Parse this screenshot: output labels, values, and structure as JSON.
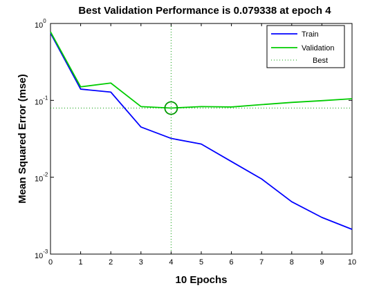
{
  "chart_data": {
    "type": "line",
    "title": "Best Validation Performance is 0.079338 at epoch 4",
    "xlabel": "10 Epochs",
    "ylabel": "Mean Squared Error  (mse)",
    "xlim": [
      0,
      10
    ],
    "ylim": [
      0.001,
      1
    ],
    "yscale": "log",
    "grid": false,
    "legend_position": "top-right",
    "xticks": [
      "0",
      "1",
      "2",
      "3",
      "4",
      "5",
      "6",
      "7",
      "8",
      "9",
      "10"
    ],
    "yticks": [
      {
        "base": "10",
        "exp": "0"
      },
      {
        "base": "10",
        "exp": "-1"
      },
      {
        "base": "10",
        "exp": "-2"
      },
      {
        "base": "10",
        "exp": "-3"
      }
    ],
    "x": [
      0,
      1,
      2,
      3,
      4,
      5,
      6,
      7,
      8,
      9,
      10
    ],
    "series": [
      {
        "name": "Train",
        "color": "#0000ff",
        "values": [
          0.75,
          0.14,
          0.128,
          0.045,
          0.032,
          0.027,
          0.016,
          0.0095,
          0.0048,
          0.003,
          0.0021
        ]
      },
      {
        "name": "Validation",
        "color": "#00cc00",
        "values": [
          0.78,
          0.15,
          0.168,
          0.083,
          0.079338,
          0.083,
          0.082,
          0.088,
          0.094,
          0.099,
          0.105
        ]
      }
    ],
    "best": {
      "name": "Best",
      "epoch": 4,
      "value": 0.079338,
      "color": "#009900"
    }
  }
}
